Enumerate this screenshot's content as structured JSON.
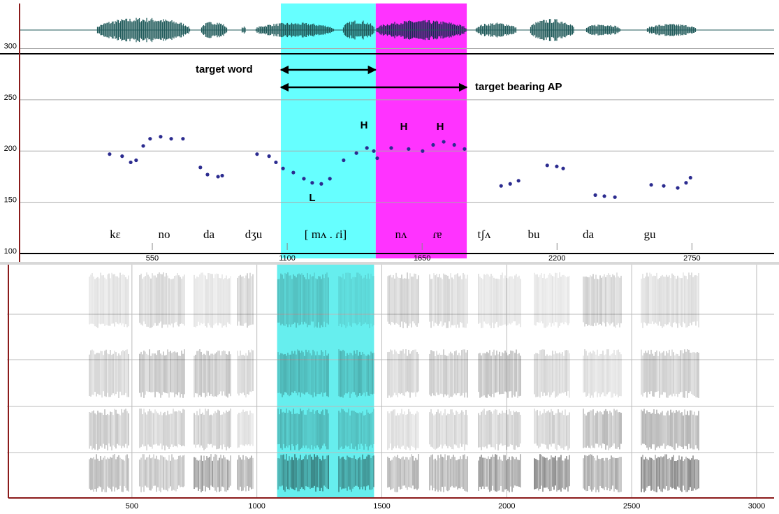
{
  "chart_data": [
    {
      "type": "scatter",
      "x": [
        376,
        427,
        462,
        484,
        513,
        541,
        584,
        627,
        675,
        746,
        775,
        818,
        835,
        977,
        1026,
        1054,
        1083,
        1125,
        1168,
        1202,
        1239,
        1274,
        1330,
        1382,
        1425,
        1453,
        1467,
        1524,
        1595,
        1652,
        1695,
        1738,
        1781,
        1823,
        1972,
        2009,
        2043,
        2160,
        2199,
        2225,
        2356,
        2393,
        2436,
        2584,
        2635,
        2692,
        2726,
        2744
      ],
      "y": [
        197,
        195,
        189,
        191,
        205,
        212,
        214,
        212,
        212,
        184,
        177,
        175,
        176,
        197,
        195,
        189,
        183,
        179,
        173,
        169,
        168,
        173,
        191,
        198,
        203,
        200,
        193,
        203,
        202,
        200,
        206,
        209,
        206,
        202,
        166,
        168,
        171,
        186,
        185,
        183,
        157,
        156,
        155,
        167,
        166,
        164,
        169,
        174
      ],
      "color": "#2b2b8f",
      "xlim": [
        6,
        3085
      ],
      "ylim": [
        100,
        344
      ],
      "xticks": [
        550,
        1100,
        1650,
        2200,
        2750
      ],
      "yticks": [
        100,
        150,
        200,
        250,
        300
      ],
      "grid": true,
      "highlights": [
        {
          "start": 1074,
          "end": 1461,
          "color": "#66ffff"
        },
        {
          "start": 1461,
          "end": 1832,
          "color": "#ff33ff"
        }
      ],
      "annotations": [
        "target word",
        "target bearing AP"
      ],
      "tone_labels": [
        "H",
        "H",
        "H",
        "L"
      ],
      "syllables": [
        "kɛ",
        "no",
        "da",
        "dʒu",
        "[ mʌ . ɾi]",
        "nʌ",
        "ɾɐ",
        "tʃʌ",
        "bu",
        "da",
        "gu"
      ]
    },
    {
      "type": "spectrogram",
      "xlim": [
        0,
        3070
      ],
      "xticks": [
        500,
        1000,
        1500,
        2000,
        2500,
        3000
      ],
      "grid": true,
      "highlights": [
        {
          "start": 1081,
          "end": 1469,
          "color": "#66eeee"
        }
      ]
    }
  ]
}
